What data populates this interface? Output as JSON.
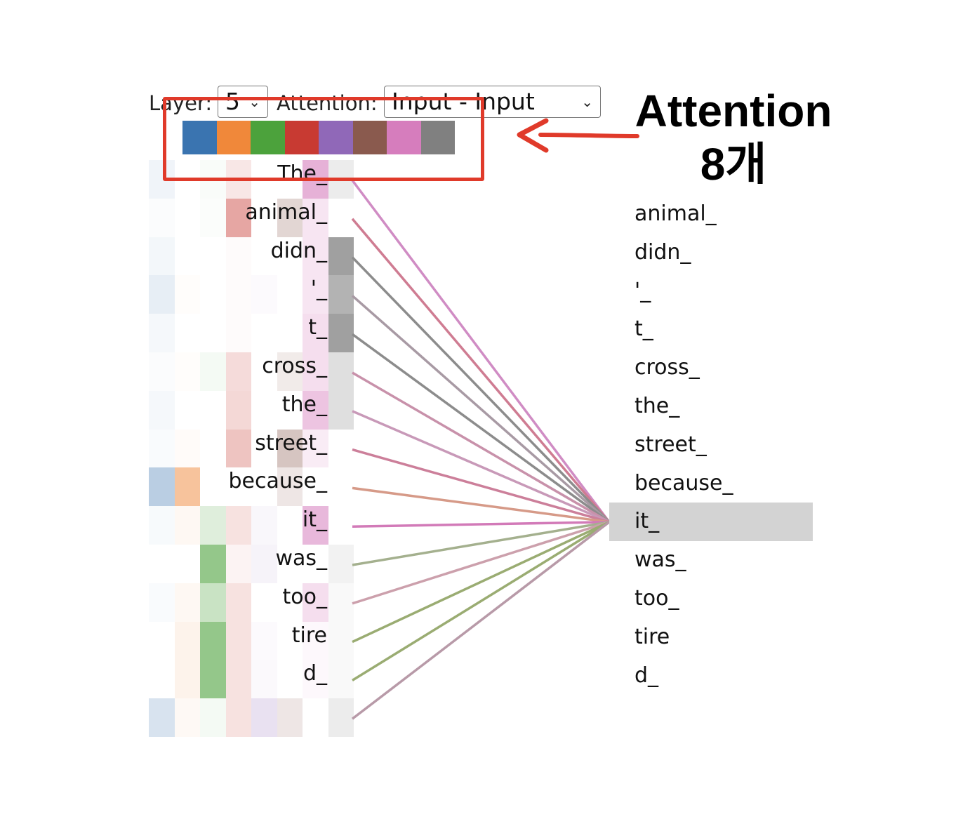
{
  "controls": {
    "layer_label": "Layer:",
    "layer_value": "5",
    "attention_label": "Attention:",
    "attention_value": "Input - Input"
  },
  "heads": {
    "colors": [
      "#3a74b0",
      "#f0883a",
      "#4ca23c",
      "#c83a32",
      "#9068b8",
      "#8a5a4e",
      "#d67dbd",
      "#808080"
    ]
  },
  "tokens_left": [
    "The_",
    "animal_",
    "didn_",
    "'_",
    "t_",
    "cross_",
    "the_",
    "street_",
    "because_",
    "it_",
    "was_",
    "too_",
    "tire",
    "d_",
    ""
  ],
  "tokens_right": [
    "",
    "animal_",
    "didn_",
    "'_",
    "t_",
    "cross_",
    "the_",
    "street_",
    "because_",
    "it_",
    "was_",
    "too_",
    "tire",
    "d_"
  ],
  "selected_right_index": 9,
  "heatmap": [
    [
      0.08,
      0.0,
      0.03,
      0.12,
      0.0,
      0.0,
      0.6,
      0.15
    ],
    [
      0.02,
      0.0,
      0.02,
      0.45,
      0.0,
      0.25,
      0.2,
      0.0
    ],
    [
      0.06,
      0.0,
      0.0,
      0.02,
      0.0,
      0.0,
      0.2,
      0.75
    ],
    [
      0.12,
      0.02,
      0.0,
      0.02,
      0.03,
      0.0,
      0.2,
      0.6
    ],
    [
      0.05,
      0.0,
      0.0,
      0.02,
      0.0,
      0.0,
      0.25,
      0.75
    ],
    [
      0.02,
      0.02,
      0.06,
      0.18,
      0.0,
      0.12,
      0.25,
      0.25
    ],
    [
      0.05,
      0.0,
      0.0,
      0.2,
      0.0,
      0.0,
      0.45,
      0.25
    ],
    [
      0.03,
      0.03,
      0.0,
      0.3,
      0.0,
      0.35,
      0.15,
      0.0
    ],
    [
      0.35,
      0.5,
      0.0,
      0.0,
      0.0,
      0.15,
      0.0,
      0.0
    ],
    [
      0.04,
      0.06,
      0.18,
      0.15,
      0.05,
      0.0,
      0.55,
      0.0
    ],
    [
      0.0,
      0.0,
      0.6,
      0.06,
      0.08,
      0.0,
      0.0,
      0.1
    ],
    [
      0.03,
      0.06,
      0.3,
      0.15,
      0.0,
      0.0,
      0.25,
      0.05
    ],
    [
      0.0,
      0.1,
      0.6,
      0.15,
      0.03,
      0.0,
      0.05,
      0.05
    ],
    [
      0.0,
      0.1,
      0.6,
      0.15,
      0.04,
      0.0,
      0.05,
      0.05
    ],
    [
      0.2,
      0.05,
      0.06,
      0.15,
      0.2,
      0.15,
      0.0,
      0.15
    ]
  ],
  "line_colors": [
    "#d08cc4",
    "#cf7c92",
    "#8c8c8c",
    "#a89aa4",
    "#8c8c8c",
    "#c891aa",
    "#c899b8",
    "#cc7f9a",
    "#d69a88",
    "#d27ab8",
    "#a4b08e",
    "#cca0ac",
    "#9aac72",
    "#9aac72",
    "#b89aa8"
  ],
  "annotation": {
    "line1": "Attention",
    "line2": "8개"
  }
}
